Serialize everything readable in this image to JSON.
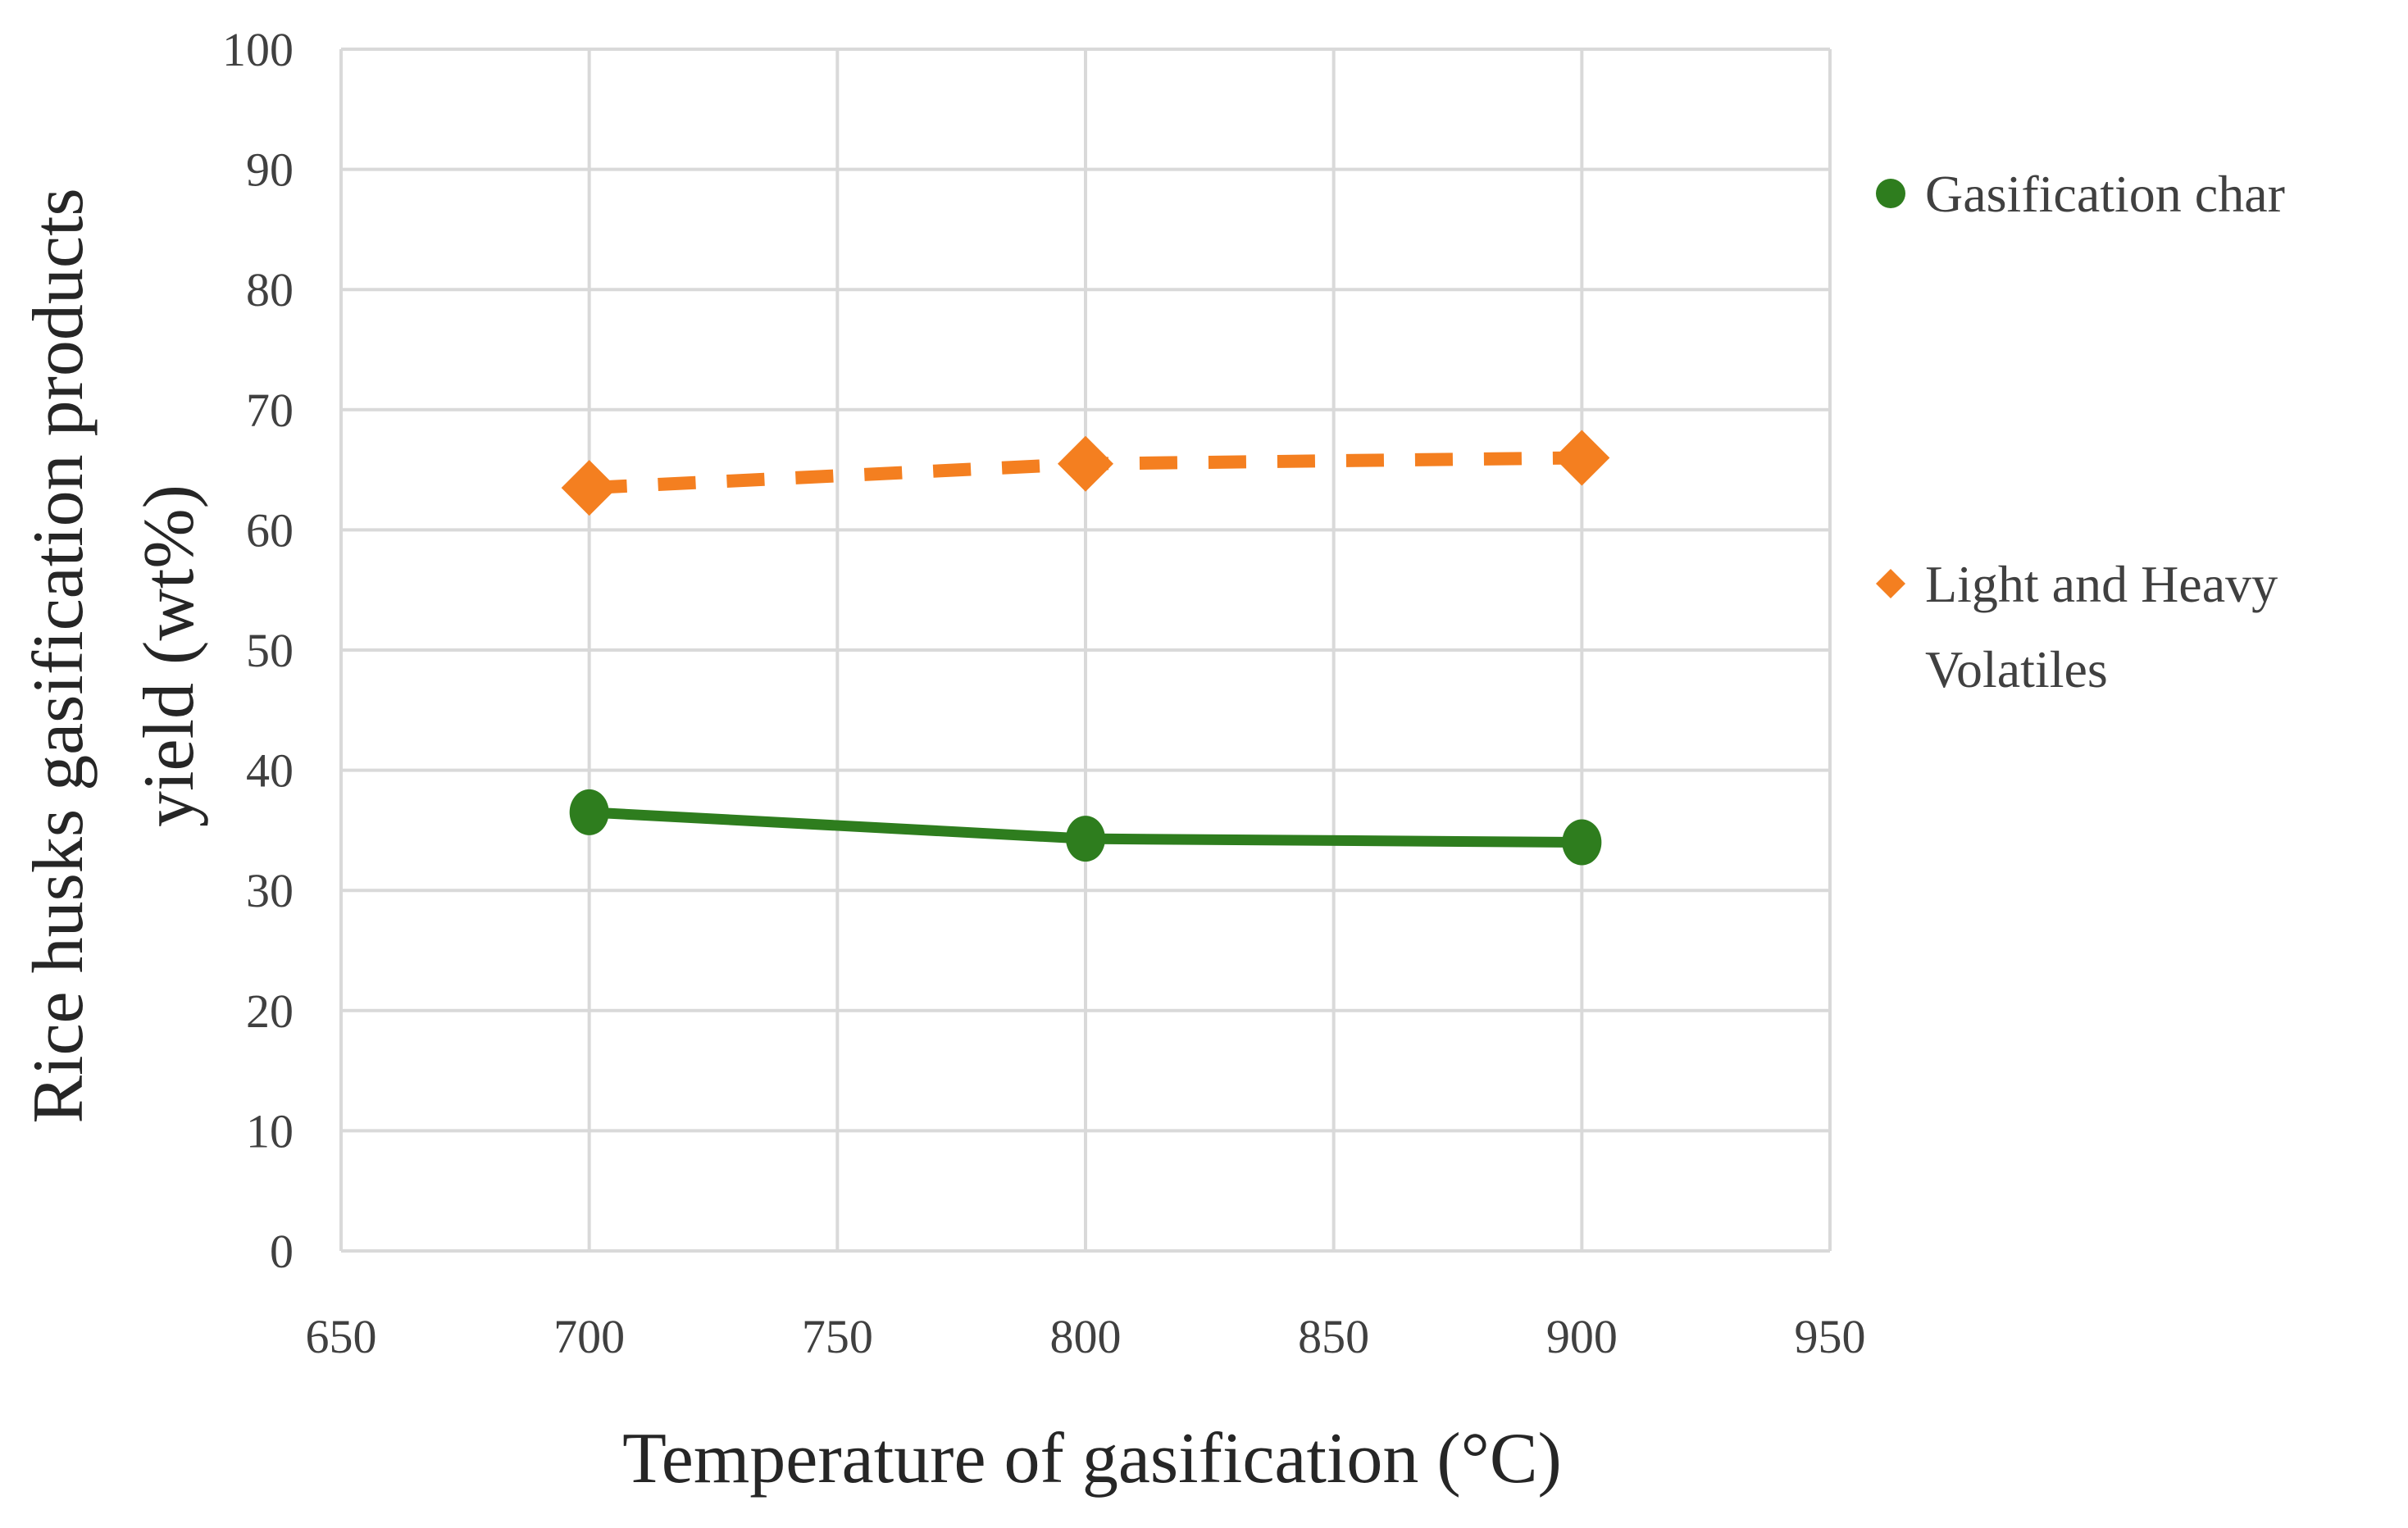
{
  "chart_data": {
    "type": "line",
    "title": "",
    "xlabel": "Temperature of gasification (°C)",
    "ylabel_line1": "Rice husks gasification products",
    "ylabel_line2": "yield (wt%)",
    "xlim": [
      650,
      950
    ],
    "ylim": [
      0,
      100
    ],
    "x_ticks": [
      "650",
      "700",
      "750",
      "800",
      "850",
      "900",
      "950"
    ],
    "y_ticks": [
      "0",
      "10",
      "20",
      "30",
      "40",
      "50",
      "60",
      "70",
      "80",
      "90",
      "100"
    ],
    "grid": true,
    "legend_position": "right",
    "series": [
      {
        "name": "Gasification char",
        "legend_lines": [
          "Gasification char"
        ],
        "x": [
          700,
          800,
          900
        ],
        "y": [
          36.5,
          34.3,
          34.0
        ],
        "marker": "circle",
        "line_style": "solid",
        "color": "#2e7d1e"
      },
      {
        "name": "Light and Heavy Volatiles",
        "legend_lines": [
          "Light and Heavy",
          "Volatiles"
        ],
        "x": [
          700,
          800,
          900
        ],
        "y": [
          63.5,
          65.5,
          66.0
        ],
        "marker": "diamond",
        "line_style": "dashed",
        "color": "#f47f20"
      }
    ]
  }
}
